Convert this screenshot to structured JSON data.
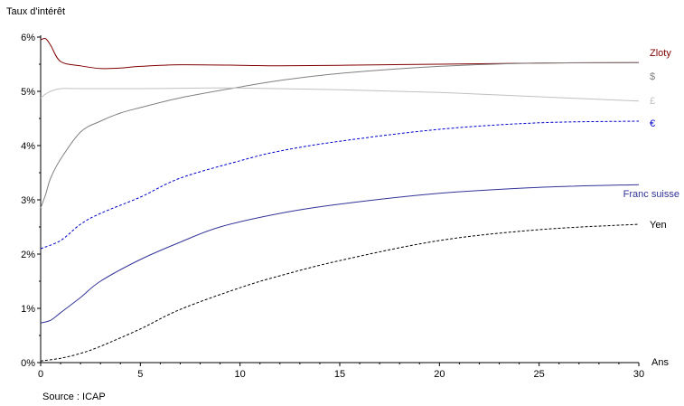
{
  "chart_data": {
    "type": "line",
    "ylabel": "Taux d'intérêt",
    "xlabel": "Ans",
    "source": "Source : ICAP",
    "xlim": [
      0,
      30
    ],
    "ylim": [
      0,
      6
    ],
    "x_ticks": [
      0,
      5,
      10,
      15,
      20,
      25,
      30
    ],
    "y_ticks": [
      0,
      1,
      2,
      3,
      4,
      5,
      6
    ],
    "y_tick_format": "percent",
    "grid": false,
    "legend": "inline-right",
    "series": [
      {
        "name": "Zloty",
        "color": "#800000",
        "dash": "solid",
        "points": [
          [
            0,
            5.95
          ],
          [
            0.25,
            5.97
          ],
          [
            0.5,
            5.85
          ],
          [
            1,
            5.55
          ],
          [
            2,
            5.47
          ],
          [
            3,
            5.42
          ],
          [
            4,
            5.43
          ],
          [
            5,
            5.46
          ],
          [
            7,
            5.49
          ],
          [
            10,
            5.48
          ],
          [
            12,
            5.47
          ],
          [
            15,
            5.48
          ],
          [
            20,
            5.5
          ],
          [
            25,
            5.52
          ],
          [
            30,
            5.53
          ]
        ]
      },
      {
        "name": "$",
        "color": "#808080",
        "dash": "solid",
        "points": [
          [
            0,
            2.85
          ],
          [
            0.25,
            3.1
          ],
          [
            0.5,
            3.4
          ],
          [
            1,
            3.75
          ],
          [
            2,
            4.25
          ],
          [
            3,
            4.45
          ],
          [
            4,
            4.6
          ],
          [
            5,
            4.7
          ],
          [
            7,
            4.88
          ],
          [
            10,
            5.08
          ],
          [
            12,
            5.2
          ],
          [
            15,
            5.33
          ],
          [
            20,
            5.46
          ],
          [
            25,
            5.52
          ],
          [
            30,
            5.53
          ]
        ]
      },
      {
        "name": "£",
        "color": "#c0c0c0",
        "dash": "solid",
        "points": [
          [
            0,
            4.88
          ],
          [
            0.25,
            4.95
          ],
          [
            0.5,
            5.0
          ],
          [
            1,
            5.05
          ],
          [
            2,
            5.05
          ],
          [
            5,
            5.05
          ],
          [
            8,
            5.06
          ],
          [
            10,
            5.06
          ],
          [
            15,
            5.03
          ],
          [
            20,
            4.98
          ],
          [
            25,
            4.9
          ],
          [
            30,
            4.82
          ]
        ]
      },
      {
        "name": "€",
        "color": "#0000cc",
        "dash": "dashed",
        "points": [
          [
            0,
            2.1
          ],
          [
            1,
            2.25
          ],
          [
            2,
            2.55
          ],
          [
            3,
            2.75
          ],
          [
            5,
            3.05
          ],
          [
            7,
            3.4
          ],
          [
            10,
            3.72
          ],
          [
            12,
            3.9
          ],
          [
            15,
            4.08
          ],
          [
            20,
            4.3
          ],
          [
            25,
            4.42
          ],
          [
            30,
            4.45
          ]
        ]
      },
      {
        "name": "Franc suisse",
        "color": "#333399",
        "dash": "solid",
        "points": [
          [
            0,
            0.73
          ],
          [
            0.5,
            0.78
          ],
          [
            1,
            0.92
          ],
          [
            2,
            1.2
          ],
          [
            3,
            1.5
          ],
          [
            5,
            1.9
          ],
          [
            7,
            2.22
          ],
          [
            9,
            2.5
          ],
          [
            12,
            2.75
          ],
          [
            15,
            2.92
          ],
          [
            20,
            3.12
          ],
          [
            25,
            3.23
          ],
          [
            30,
            3.28
          ]
        ]
      },
      {
        "name": "Yen",
        "color": "#000000",
        "dash": "dashed",
        "points": [
          [
            0,
            0.03
          ],
          [
            1,
            0.08
          ],
          [
            2,
            0.17
          ],
          [
            3,
            0.3
          ],
          [
            5,
            0.62
          ],
          [
            7,
            0.98
          ],
          [
            10,
            1.38
          ],
          [
            12,
            1.6
          ],
          [
            15,
            1.88
          ],
          [
            20,
            2.25
          ],
          [
            25,
            2.45
          ],
          [
            30,
            2.55
          ]
        ]
      }
    ]
  }
}
